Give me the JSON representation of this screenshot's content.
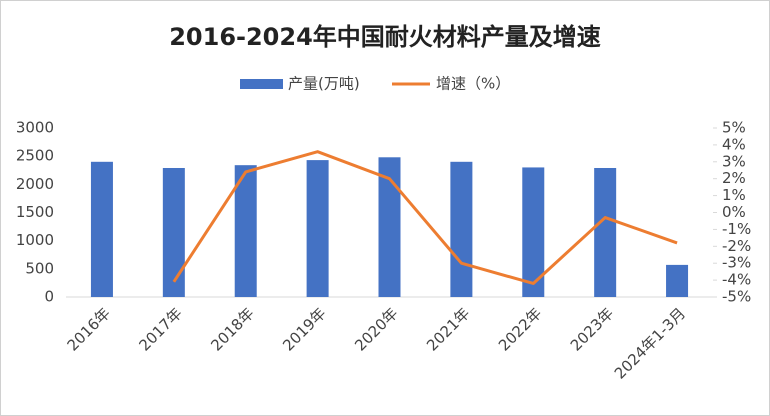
{
  "chart_data": {
    "type": "bar_line",
    "title": "2016-2024年中国耐火材料产量及增速",
    "categories": [
      "2016年",
      "2017年",
      "2018年",
      "2019年",
      "2020年",
      "2021年",
      "2022年",
      "2023年",
      "2024年1-3月"
    ],
    "series": [
      {
        "name": "产量(万吨)",
        "type": "bar",
        "color": "#4472c4",
        "axis": "y",
        "values": [
          2400,
          2290,
          2340,
          2430,
          2480,
          2400,
          2300,
          2290,
          570
        ]
      },
      {
        "name": "增速（%）",
        "type": "line",
        "color": "#ed7d31",
        "axis": "y2",
        "values": [
          null,
          -4.1,
          2.4,
          3.6,
          2.0,
          -3.0,
          -4.2,
          -0.3,
          -1.8
        ]
      }
    ],
    "ylim": [
      0,
      3000
    ],
    "yticks": [
      0,
      500,
      1000,
      1500,
      2000,
      2500,
      3000
    ],
    "y2lim": [
      -5,
      5
    ],
    "y2ticks": [
      {
        "value": 5,
        "label": "5%"
      },
      {
        "value": 4,
        "label": "4%"
      },
      {
        "value": 3,
        "label": "3%"
      },
      {
        "value": 2,
        "label": "2%"
      },
      {
        "value": 1,
        "label": "1%"
      },
      {
        "value": 0,
        "label": "0%"
      },
      {
        "value": -1,
        "label": "-1%"
      },
      {
        "value": -2,
        "label": "-2%"
      },
      {
        "value": -3,
        "label": "-3%"
      },
      {
        "value": -4,
        "label": "-4%"
      },
      {
        "value": -5,
        "label": "-5%"
      }
    ],
    "legend": "top"
  }
}
